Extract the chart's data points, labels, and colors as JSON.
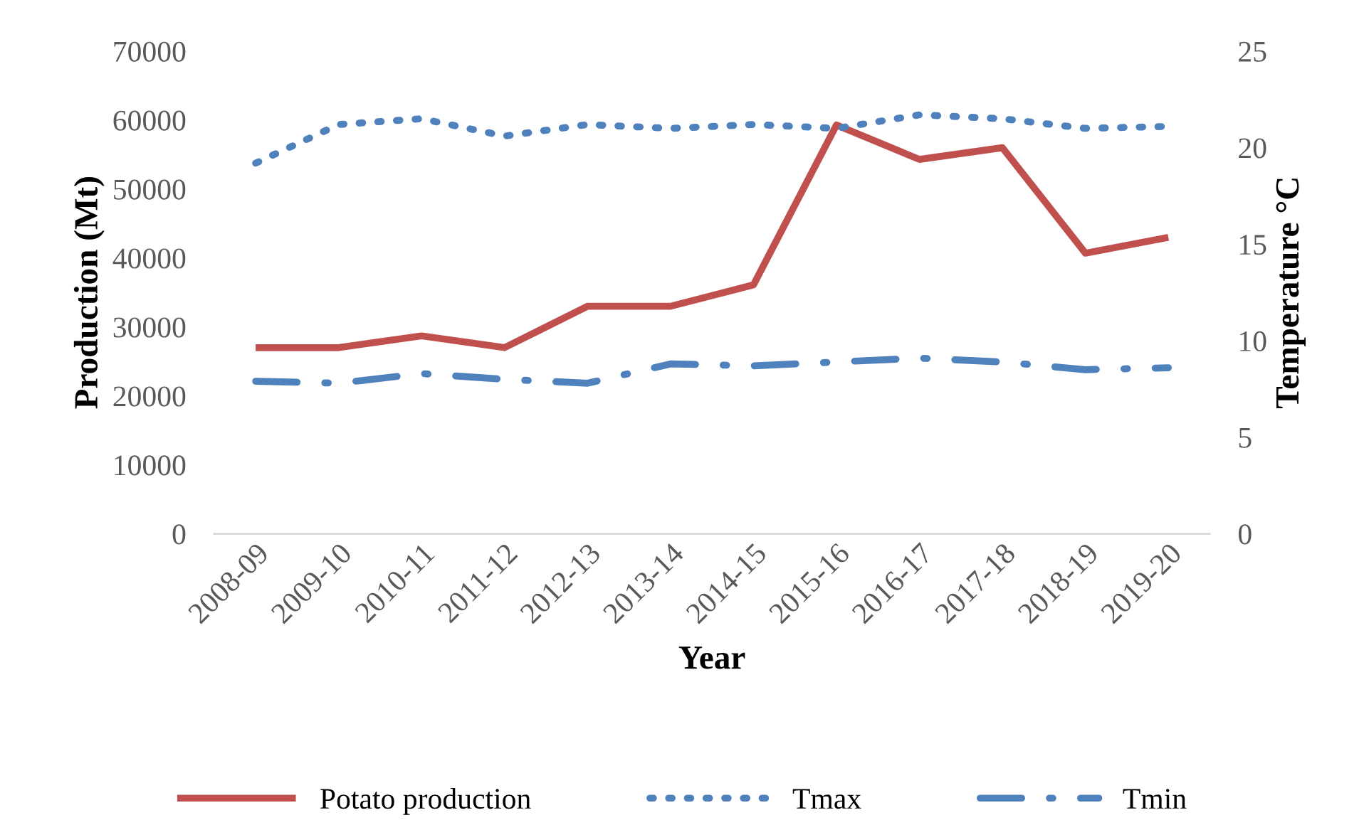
{
  "chart_data": {
    "type": "line",
    "xlabel": "Year",
    "ylabel": "Production (Mt)",
    "y2label": "Temperature °C",
    "categories": [
      "2008-09",
      "2009-10",
      "2010-11",
      "2011-12",
      "2012-13",
      "2013-14",
      "2014-15",
      "2015-16",
      "2016-17",
      "2017-18",
      "2018-19",
      "2019-20"
    ],
    "series": [
      {
        "name": "Potato production",
        "color": "#c0504d",
        "line_style": "solid",
        "values": [
          27000,
          27000,
          28700,
          27000,
          33000,
          33000,
          36100,
          59300,
          54300,
          56000,
          40700,
          43000
        ]
      },
      {
        "name": "Tmax",
        "color": "#4f81bd",
        "line_style": "dotted",
        "axis": "y2",
        "values": [
          19.2,
          21.2,
          21.5,
          20.6,
          21.2,
          21.0,
          21.2,
          21.0,
          21.7,
          21.5,
          21.0,
          21.1
        ]
      },
      {
        "name": "Tmin",
        "color": "#4f81bd",
        "line_style": "dashdot",
        "axis": "y2",
        "values": [
          7.9,
          7.8,
          8.3,
          8.0,
          7.8,
          8.8,
          8.7,
          8.9,
          9.1,
          8.9,
          8.5,
          8.6
        ]
      }
    ],
    "ylim": [
      0,
      70000
    ],
    "yticks": [
      0,
      10000,
      20000,
      30000,
      40000,
      50000,
      60000,
      70000
    ],
    "y2lim": [
      0,
      25
    ],
    "y2ticks": [
      0,
      5,
      10,
      15,
      20,
      25
    ],
    "grid": false,
    "legend": "bottom"
  }
}
